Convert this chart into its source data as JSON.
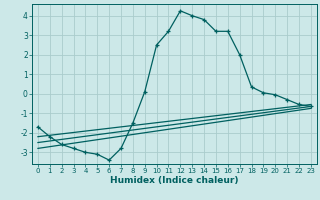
{
  "xlabel": "Humidex (Indice chaleur)",
  "background_color": "#cce8e8",
  "grid_color": "#aacccc",
  "line_color": "#006060",
  "xlim": [
    -0.5,
    23.5
  ],
  "ylim": [
    -3.6,
    4.6
  ],
  "yticks": [
    -3,
    -2,
    -1,
    0,
    1,
    2,
    3,
    4
  ],
  "xticks": [
    0,
    1,
    2,
    3,
    4,
    5,
    6,
    7,
    8,
    9,
    10,
    11,
    12,
    13,
    14,
    15,
    16,
    17,
    18,
    19,
    20,
    21,
    22,
    23
  ],
  "series1_x": [
    0,
    1,
    2,
    3,
    4,
    5,
    6,
    7,
    8,
    9,
    10,
    11,
    12,
    13,
    14,
    15,
    16,
    17,
    18,
    19,
    20,
    21,
    22,
    23
  ],
  "series1_y": [
    -1.7,
    -2.2,
    -2.6,
    -2.8,
    -3.0,
    -3.1,
    -3.4,
    -2.8,
    -1.5,
    0.1,
    2.5,
    3.2,
    4.25,
    4.0,
    3.8,
    3.2,
    3.2,
    2.0,
    0.35,
    0.05,
    -0.05,
    -0.3,
    -0.55,
    -0.65
  ],
  "series2_x": [
    0,
    23
  ],
  "series2_y": [
    -2.2,
    -0.55
  ],
  "series3_x": [
    0,
    23
  ],
  "series3_y": [
    -2.5,
    -0.65
  ],
  "series4_x": [
    0,
    23
  ],
  "series4_y": [
    -2.8,
    -0.75
  ]
}
